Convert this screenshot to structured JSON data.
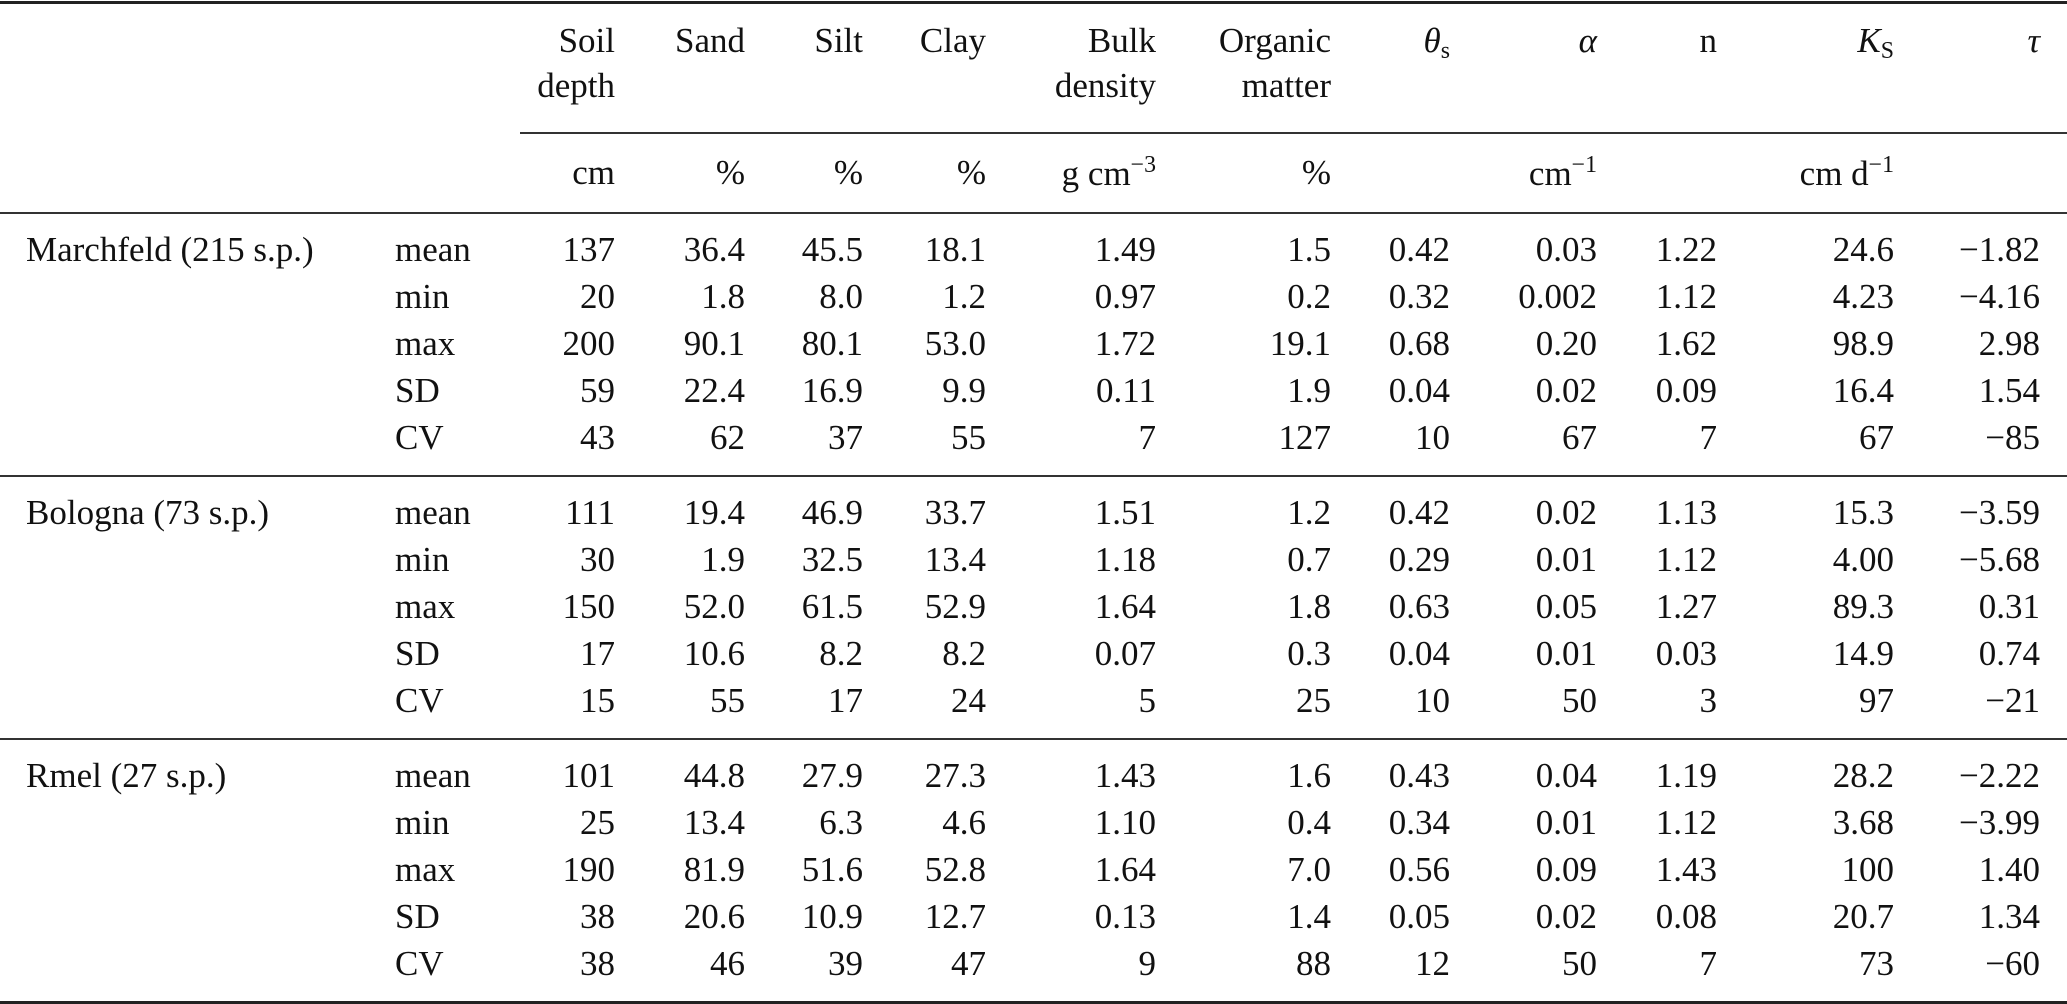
{
  "table": {
    "columns": [
      {
        "main": "Soil",
        "line2": "depth",
        "unit": "cm"
      },
      {
        "main": "Sand",
        "line2": "",
        "unit": "%"
      },
      {
        "main": "Silt",
        "line2": "",
        "unit": "%"
      },
      {
        "main": "Clay",
        "line2": "",
        "unit": "%"
      },
      {
        "main": "Bulk",
        "line2": "density",
        "unit": "g cm",
        "unit_sup": "−3"
      },
      {
        "main": "Organic",
        "line2": "matter",
        "unit": "%"
      },
      {
        "main": "θ",
        "sub": "s",
        "italic": true,
        "line2": "",
        "unit": ""
      },
      {
        "main": "α",
        "italic": true,
        "line2": "",
        "unit": "cm",
        "unit_sup": "−1"
      },
      {
        "main": "n",
        "line2": "",
        "unit": ""
      },
      {
        "main": "K",
        "sub": "S",
        "italic": true,
        "line2": "",
        "unit": "cm d",
        "unit_sup": "−1"
      },
      {
        "main": "τ",
        "italic": true,
        "line2": "",
        "unit": ""
      }
    ],
    "groups": [
      {
        "label": "Marchfeld (215 s.p.)",
        "rows": [
          {
            "stat": "mean",
            "values": [
              "137",
              "36.4",
              "45.5",
              "18.1",
              "1.49",
              "1.5",
              "0.42",
              "0.03",
              "1.22",
              "24.6",
              "−1.82"
            ]
          },
          {
            "stat": "min",
            "values": [
              "20",
              "1.8",
              "8.0",
              "1.2",
              "0.97",
              "0.2",
              "0.32",
              "0.002",
              "1.12",
              "4.23",
              "−4.16"
            ]
          },
          {
            "stat": "max",
            "values": [
              "200",
              "90.1",
              "80.1",
              "53.0",
              "1.72",
              "19.1",
              "0.68",
              "0.20",
              "1.62",
              "98.9",
              "2.98"
            ]
          },
          {
            "stat": "SD",
            "values": [
              "59",
              "22.4",
              "16.9",
              "9.9",
              "0.11",
              "1.9",
              "0.04",
              "0.02",
              "0.09",
              "16.4",
              "1.54"
            ]
          },
          {
            "stat": "CV",
            "values": [
              "43",
              "62",
              "37",
              "55",
              "7",
              "127",
              "10",
              "67",
              "7",
              "67",
              "−85"
            ]
          }
        ]
      },
      {
        "label": "Bologna (73 s.p.)",
        "rows": [
          {
            "stat": "mean",
            "values": [
              "111",
              "19.4",
              "46.9",
              "33.7",
              "1.51",
              "1.2",
              "0.42",
              "0.02",
              "1.13",
              "15.3",
              "−3.59"
            ]
          },
          {
            "stat": "min",
            "values": [
              "30",
              "1.9",
              "32.5",
              "13.4",
              "1.18",
              "0.7",
              "0.29",
              "0.01",
              "1.12",
              "4.00",
              "−5.68"
            ]
          },
          {
            "stat": "max",
            "values": [
              "150",
              "52.0",
              "61.5",
              "52.9",
              "1.64",
              "1.8",
              "0.63",
              "0.05",
              "1.27",
              "89.3",
              "0.31"
            ]
          },
          {
            "stat": "SD",
            "values": [
              "17",
              "10.6",
              "8.2",
              "8.2",
              "0.07",
              "0.3",
              "0.04",
              "0.01",
              "0.03",
              "14.9",
              "0.74"
            ]
          },
          {
            "stat": "CV",
            "values": [
              "15",
              "55",
              "17",
              "24",
              "5",
              "25",
              "10",
              "50",
              "3",
              "97",
              "−21"
            ]
          }
        ]
      },
      {
        "label": "Rmel (27 s.p.)",
        "rows": [
          {
            "stat": "mean",
            "values": [
              "101",
              "44.8",
              "27.9",
              "27.3",
              "1.43",
              "1.6",
              "0.43",
              "0.04",
              "1.19",
              "28.2",
              "−2.22"
            ]
          },
          {
            "stat": "min",
            "values": [
              "25",
              "13.4",
              "6.3",
              "4.6",
              "1.10",
              "0.4",
              "0.34",
              "0.01",
              "1.12",
              "3.68",
              "−3.99"
            ]
          },
          {
            "stat": "max",
            "values": [
              "190",
              "81.9",
              "51.6",
              "52.8",
              "1.64",
              "7.0",
              "0.56",
              "0.09",
              "1.43",
              "100",
              "1.40"
            ]
          },
          {
            "stat": "SD",
            "values": [
              "38",
              "20.6",
              "10.9",
              "12.7",
              "0.13",
              "1.4",
              "0.05",
              "0.02",
              "0.08",
              "20.7",
              "1.34"
            ]
          },
          {
            "stat": "CV",
            "values": [
              "38",
              "46",
              "39",
              "47",
              "9",
              "88",
              "12",
              "50",
              "7",
              "73",
              "−60"
            ]
          }
        ]
      }
    ]
  }
}
